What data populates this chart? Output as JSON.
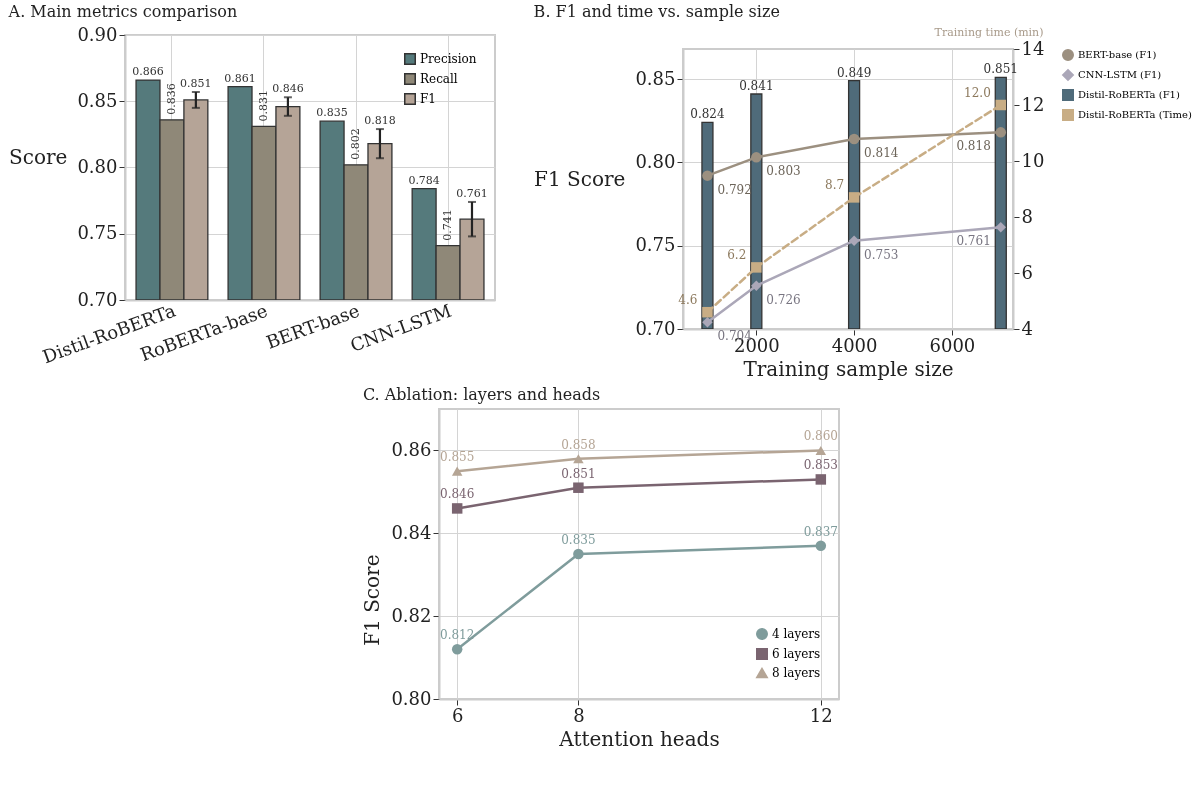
{
  "chart_data": [
    {
      "type": "bar",
      "title": "A. Main metrics comparison",
      "ylabel": "Score",
      "categories": [
        "Distil-RoBERTa",
        "RoBERTa-base",
        "BERT-base",
        "CNN-LSTM"
      ],
      "series": [
        {
          "name": "Precision",
          "color": "#557a7c",
          "values": [
            0.866,
            0.861,
            0.835,
            0.784
          ],
          "value_labels": [
            "0.866",
            "0.861",
            "0.835",
            "0.784"
          ]
        },
        {
          "name": "Recall",
          "color": "#8f8878",
          "values": [
            0.836,
            0.831,
            0.802,
            0.741
          ],
          "value_labels": [
            "0.836",
            "0.831",
            "0.802",
            "0.741"
          ]
        },
        {
          "name": "F1",
          "color": "#b5a497",
          "values": [
            0.851,
            0.846,
            0.818,
            0.761
          ],
          "errors": [
            0.006,
            0.007,
            0.011,
            0.013
          ],
          "value_labels": [
            "0.851",
            "0.846",
            "0.818",
            "0.761"
          ]
        }
      ],
      "ylim": [
        0.7,
        0.9
      ],
      "yticks": [
        {
          "value": 0.7,
          "label": "0.70"
        },
        0.75,
        {
          "value": 0.8,
          "label": "0.80"
        },
        0.85,
        {
          "value": 0.9,
          "label": "0.90"
        }
      ],
      "grid": true,
      "legend": "top right"
    },
    {
      "type": "line",
      "title": "B. F1 and time vs. sample size",
      "xlabel": "Training sample size",
      "ylabel": "F1 Score",
      "y2label": "Training time (min)",
      "x": [
        1000,
        2000,
        4000,
        7000
      ],
      "series": [
        {
          "name": "BERT-base (F1)",
          "color": "#9c9080",
          "marker": "circle",
          "values": [
            0.792,
            0.803,
            0.814,
            0.818
          ],
          "value_labels": [
            "0.792",
            "0.803",
            "0.814",
            "0.818"
          ]
        },
        {
          "name": "CNN-LSTM (F1)",
          "color": "#aba7b8",
          "marker": "diamond",
          "values": [
            0.704,
            0.726,
            0.753,
            0.761
          ],
          "value_labels": [
            "0.704",
            "0.726",
            "0.753",
            "0.761"
          ]
        },
        {
          "name": "Distil-RoBERTa (F1)",
          "type": "bar",
          "color": "#4f6b7a",
          "values": [
            0.824,
            0.841,
            0.849,
            0.851
          ],
          "value_labels": [
            "0.824",
            "0.841",
            "0.849",
            "0.851"
          ]
        },
        {
          "name": "Distil-RoBERTa (Time)",
          "color": "#c8ad85",
          "marker": "square",
          "line_style": "dashed",
          "axis": "y2",
          "values": [
            4.6,
            6.2,
            8.7,
            12
          ],
          "value_labels": [
            "4.6",
            "6.2",
            "8.7",
            "12.0"
          ]
        }
      ],
      "xlim": [
        500,
        7250
      ],
      "xticks": [
        2000,
        4000,
        6000
      ],
      "ylim": [
        0.7,
        0.868
      ],
      "yticks": [
        {
          "value": 0.7,
          "label": "0.70"
        },
        0.75,
        {
          "value": 0.8,
          "label": "0.80"
        },
        0.85
      ],
      "y2lim": [
        4,
        14
      ],
      "y2ticks": [
        4,
        6,
        8,
        10,
        12,
        14
      ],
      "grid": true,
      "legend": "right"
    },
    {
      "type": "line",
      "title": "C. Ablation: layers and heads",
      "xlabel": "Attention heads",
      "ylabel": "F1 Score",
      "x": [
        6,
        8,
        12
      ],
      "series": [
        {
          "name": "4 layers",
          "color": "#7f9c9c",
          "marker": "circle",
          "values": [
            0.812,
            0.835,
            0.837
          ],
          "value_labels": [
            "0.812",
            "0.835",
            "0.837"
          ]
        },
        {
          "name": "6 layers",
          "color": "#7a6470",
          "marker": "square",
          "values": [
            0.846,
            0.851,
            0.853
          ],
          "value_labels": [
            "0.846",
            "0.851",
            "0.853"
          ]
        },
        {
          "name": "8 layers",
          "color": "#b5a595",
          "marker": "triangle",
          "values": [
            0.855,
            0.858,
            0.86
          ],
          "value_labels": [
            "0.855",
            "0.858",
            "0.860"
          ]
        }
      ],
      "xlim": [
        5.7,
        12.3
      ],
      "xticks": [
        6,
        8,
        12
      ],
      "ylim": [
        0.8,
        0.87
      ],
      "yticks": [
        {
          "value": 0.8,
          "label": "0.80"
        },
        0.82,
        0.84,
        0.86
      ],
      "grid": true,
      "legend": "bottom right"
    }
  ]
}
